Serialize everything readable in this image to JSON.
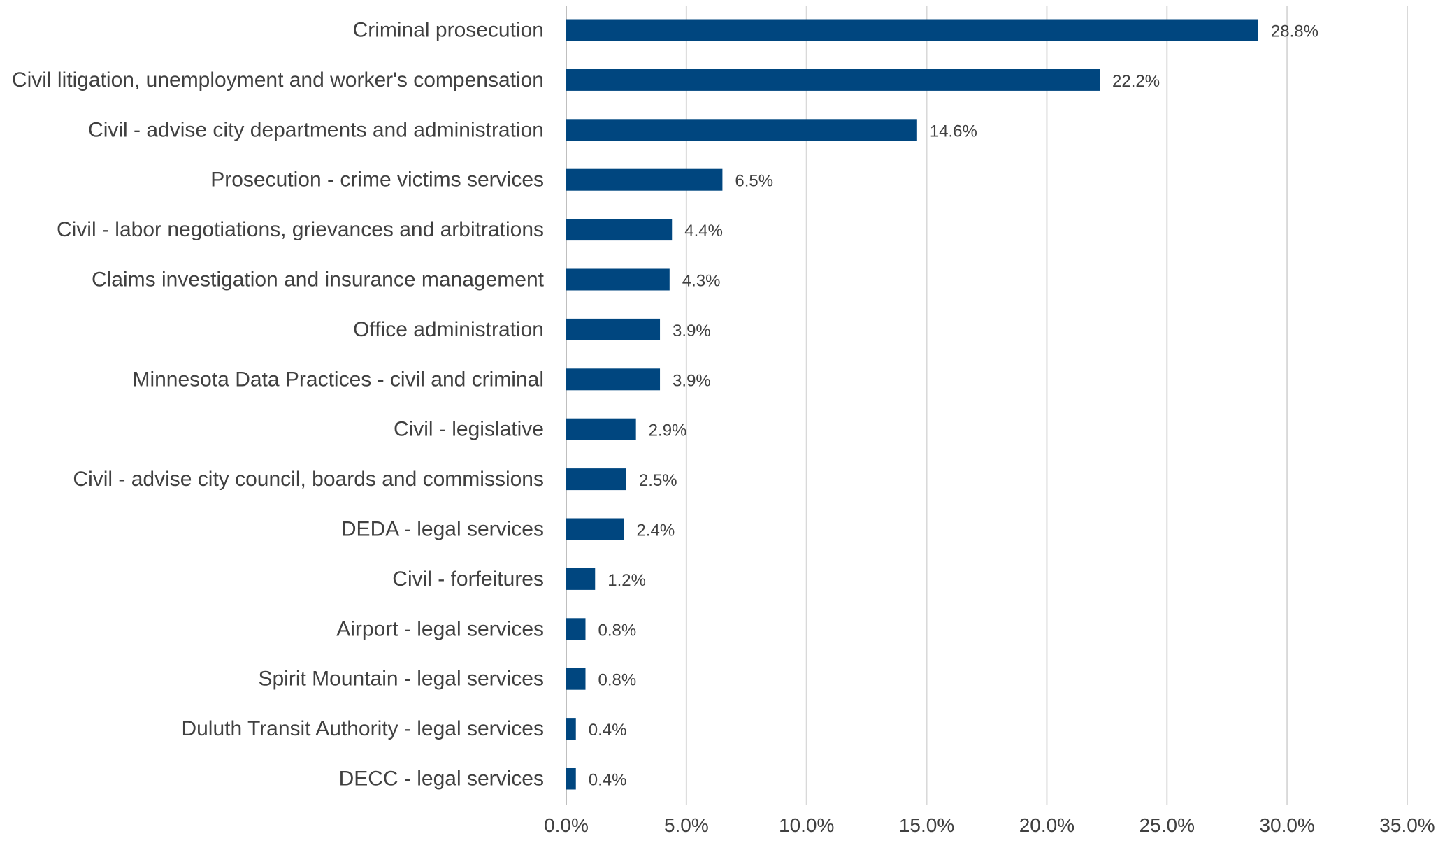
{
  "chart_data": {
    "type": "bar",
    "orientation": "horizontal",
    "categories": [
      "Criminal prosecution",
      "Civil litigation, unemployment and worker's compensation",
      "Civil - advise city departments and administration",
      "Prosecution - crime victims services",
      "Civil - labor negotiations, grievances and arbitrations",
      "Claims investigation and insurance management",
      "Office administration",
      "Minnesota Data Practices - civil and criminal",
      "Civil - legislative",
      "Civil - advise city council, boards and commissions",
      "DEDA - legal services",
      "Civil - forfeitures",
      "Airport - legal services",
      "Spirit Mountain - legal services",
      "Duluth Transit Authority - legal services",
      "DECC - legal services"
    ],
    "values": [
      28.8,
      22.2,
      14.6,
      6.5,
      4.4,
      4.3,
      3.9,
      3.9,
      2.9,
      2.5,
      2.4,
      1.2,
      0.8,
      0.8,
      0.4,
      0.4
    ],
    "data_labels": [
      "28.8%",
      "22.2%",
      "14.6%",
      "6.5%",
      "4.4%",
      "4.3%",
      "3.9%",
      "3.9%",
      "2.9%",
      "2.5%",
      "2.4%",
      "1.2%",
      "0.8%",
      "0.8%",
      "0.4%",
      "0.4%"
    ],
    "xlim": [
      0,
      35
    ],
    "xticks": [
      0,
      5,
      10,
      15,
      20,
      25,
      30,
      35
    ],
    "xtick_labels": [
      "0.0%",
      "5.0%",
      "10.0%",
      "15.0%",
      "20.0%",
      "25.0%",
      "30.0%",
      "35.0%"
    ],
    "title": "",
    "xlabel": "",
    "ylabel": "",
    "grid": "vertical",
    "legend": "none",
    "bar_color": "#00467f",
    "grid_color": "#d9d9d9",
    "text_color": "#404040"
  }
}
